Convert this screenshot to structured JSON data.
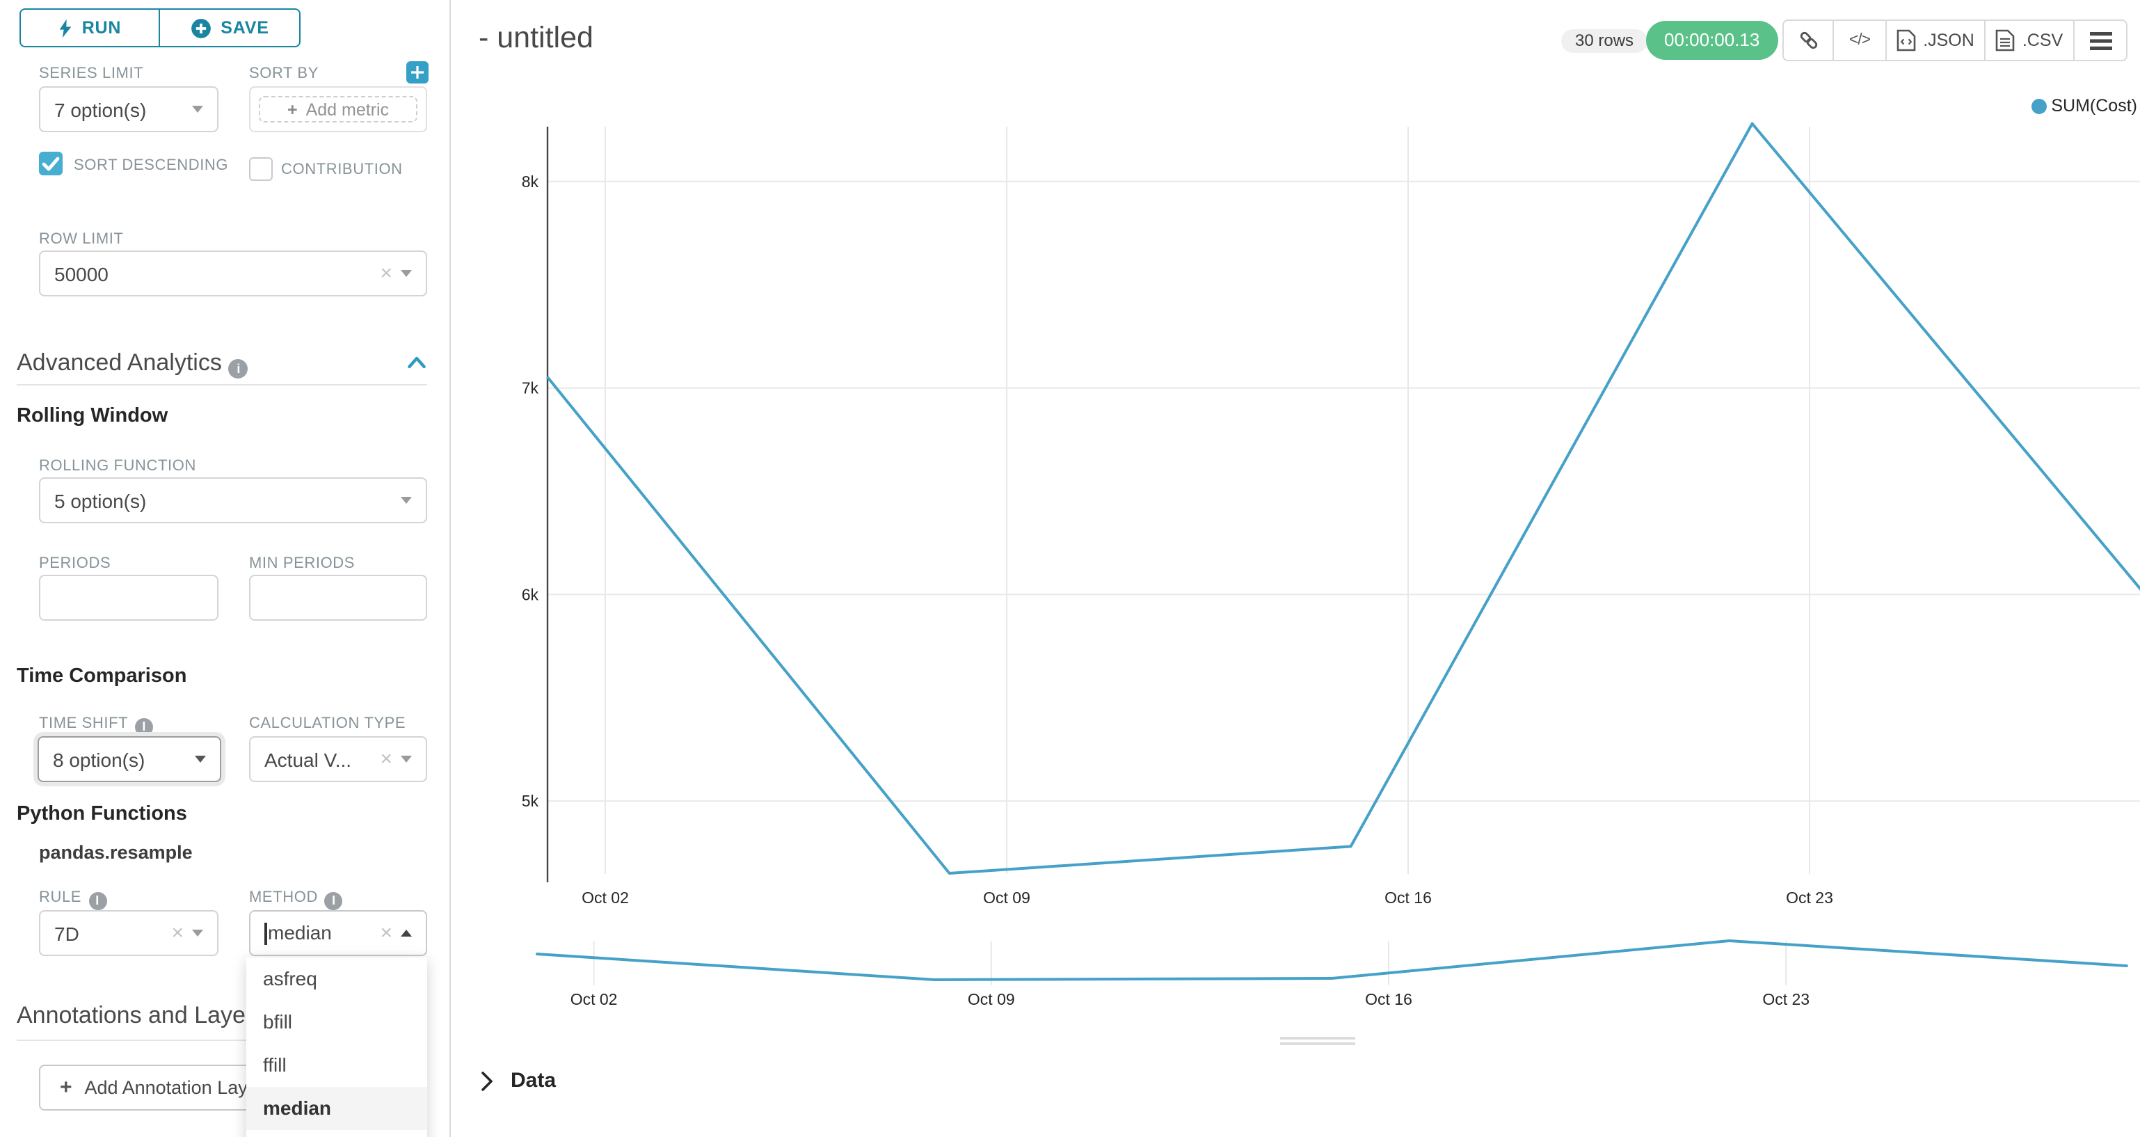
{
  "colors": {
    "accent_teal": "#1985A0",
    "control_blue": "#46AED1",
    "success_green": "#5AC189",
    "series_line": "#45A1C7",
    "label_gray": "#879399"
  },
  "icons": {
    "run": "lightning-icon",
    "save": "plus-circle-icon",
    "add_metric_header": "plus-square-icon",
    "section_info": "info-icon",
    "section_collapse": "chevron-up-icon",
    "share": "link-icon",
    "embed": "code-icon",
    "export_json": "file-code-icon",
    "export_csv": "file-text-icon",
    "more": "hamburger-menu-icon",
    "data_expand": "chevron-right-icon"
  },
  "sidebar": {
    "run_label": "RUN",
    "save_label": "SAVE",
    "series_limit_label": "SERIES LIMIT",
    "series_limit_value": "7 option(s)",
    "sort_by_label": "SORT BY",
    "add_metric_label": "Add metric",
    "sort_descending_label": "SORT DESCENDING",
    "contribution_label": "CONTRIBUTION",
    "row_limit_label": "ROW LIMIT",
    "row_limit_value": "50000",
    "advanced_analytics_title": "Advanced Analytics",
    "rolling_window_title": "Rolling Window",
    "rolling_function_label": "ROLLING FUNCTION",
    "rolling_function_value": "5 option(s)",
    "periods_label": "PERIODS",
    "min_periods_label": "MIN PERIODS",
    "time_comparison_title": "Time Comparison",
    "time_shift_label": "TIME SHIFT",
    "time_shift_value": "8 option(s)",
    "calculation_type_label": "CALCULATION TYPE",
    "calculation_type_value": "Actual V...",
    "python_functions_title": "Python Functions",
    "resample_title": "pandas.resample",
    "rule_label": "RULE",
    "rule_value": "7D",
    "method_label": "METHOD",
    "method_value": "median",
    "method_options": [
      "asfreq",
      "bfill",
      "ffill",
      "median"
    ],
    "method_selected": "median",
    "annotations_title": "Annotations and Layers",
    "add_annotation_label": "Add Annotation Layer"
  },
  "header": {
    "title": "- untitled",
    "rows_badge": "30 rows",
    "timer_badge": "00:00:00.13",
    "json_label": ".JSON",
    "csv_label": ".CSV"
  },
  "data_panel": {
    "title": "Data"
  },
  "chart_data": {
    "type": "line",
    "title": "- untitled",
    "legend_position": "top-right",
    "grid": true,
    "legend": [
      {
        "label": "SUM(Cost)",
        "color": "#45A1C7"
      }
    ],
    "series": [
      {
        "name": "SUM(Cost)",
        "color": "#45A1C7",
        "x": [
          "Oct 01",
          "Oct 08",
          "Oct 15",
          "Oct 22",
          "Oct 29"
        ],
        "day_offsets": [
          0,
          7,
          14,
          21,
          28
        ],
        "values": [
          7050,
          4650,
          4780,
          8280,
          5950
        ]
      }
    ],
    "x_ticks": [
      {
        "day": 1,
        "label": "Oct 02"
      },
      {
        "day": 8,
        "label": "Oct 09"
      },
      {
        "day": 15,
        "label": "Oct 16"
      },
      {
        "day": 22,
        "label": "Oct 23"
      }
    ],
    "y_ticks": [
      {
        "value": 8000,
        "label": "8k"
      },
      {
        "value": 7000,
        "label": "7k"
      },
      {
        "value": 6000,
        "label": "6k"
      },
      {
        "value": 5000,
        "label": "5k"
      }
    ],
    "y_range_approx": [
      4400,
      8400
    ],
    "x_range": [
      "Oct 01",
      "Oct 29"
    ],
    "has_mini_preview": true
  }
}
